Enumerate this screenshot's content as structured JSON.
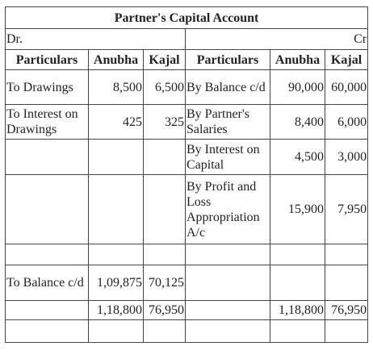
{
  "title": "Partner's Capital Account",
  "dr": "Dr.",
  "cr": "Cr",
  "headers": [
    "Particulars",
    "Anubha",
    "Kajal",
    "Particulars",
    "Anubha",
    "Kajal"
  ],
  "rows": [
    {
      "dp": "To Drawings",
      "da": "8,500",
      "dk": "6,500",
      "cp": "By Balance c/d",
      "ca": "90,000",
      "ck": "60,000"
    },
    {
      "dp": "To Interest on Drawings",
      "da": "425",
      "dk": "325",
      "cp": "By Partner's Salaries",
      "ca": "8,400",
      "ck": "6,000"
    },
    {
      "dp": "",
      "da": "",
      "dk": "",
      "cp": "By Interest on Capital",
      "ca": "4,500",
      "ck": "3,000"
    },
    {
      "dp": "",
      "da": "",
      "dk": "",
      "cp": "By Profit and Loss Appropriation A/c",
      "ca": "15,900",
      "ck": "7,950"
    },
    {
      "dp": "",
      "da": "",
      "dk": "",
      "cp": "",
      "ca": "",
      "ck": ""
    },
    {
      "dp": "To Balance c/d",
      "da": "1,09,875",
      "dk": "70,125",
      "cp": "",
      "ca": "",
      "ck": ""
    },
    {
      "dp": "",
      "da": "1,18,800",
      "dk": "76,950",
      "cp": "",
      "ca": "1,18,800",
      "ck": "76,950"
    },
    {
      "dp": "",
      "da": "",
      "dk": "",
      "cp": "",
      "ca": "",
      "ck": ""
    }
  ]
}
